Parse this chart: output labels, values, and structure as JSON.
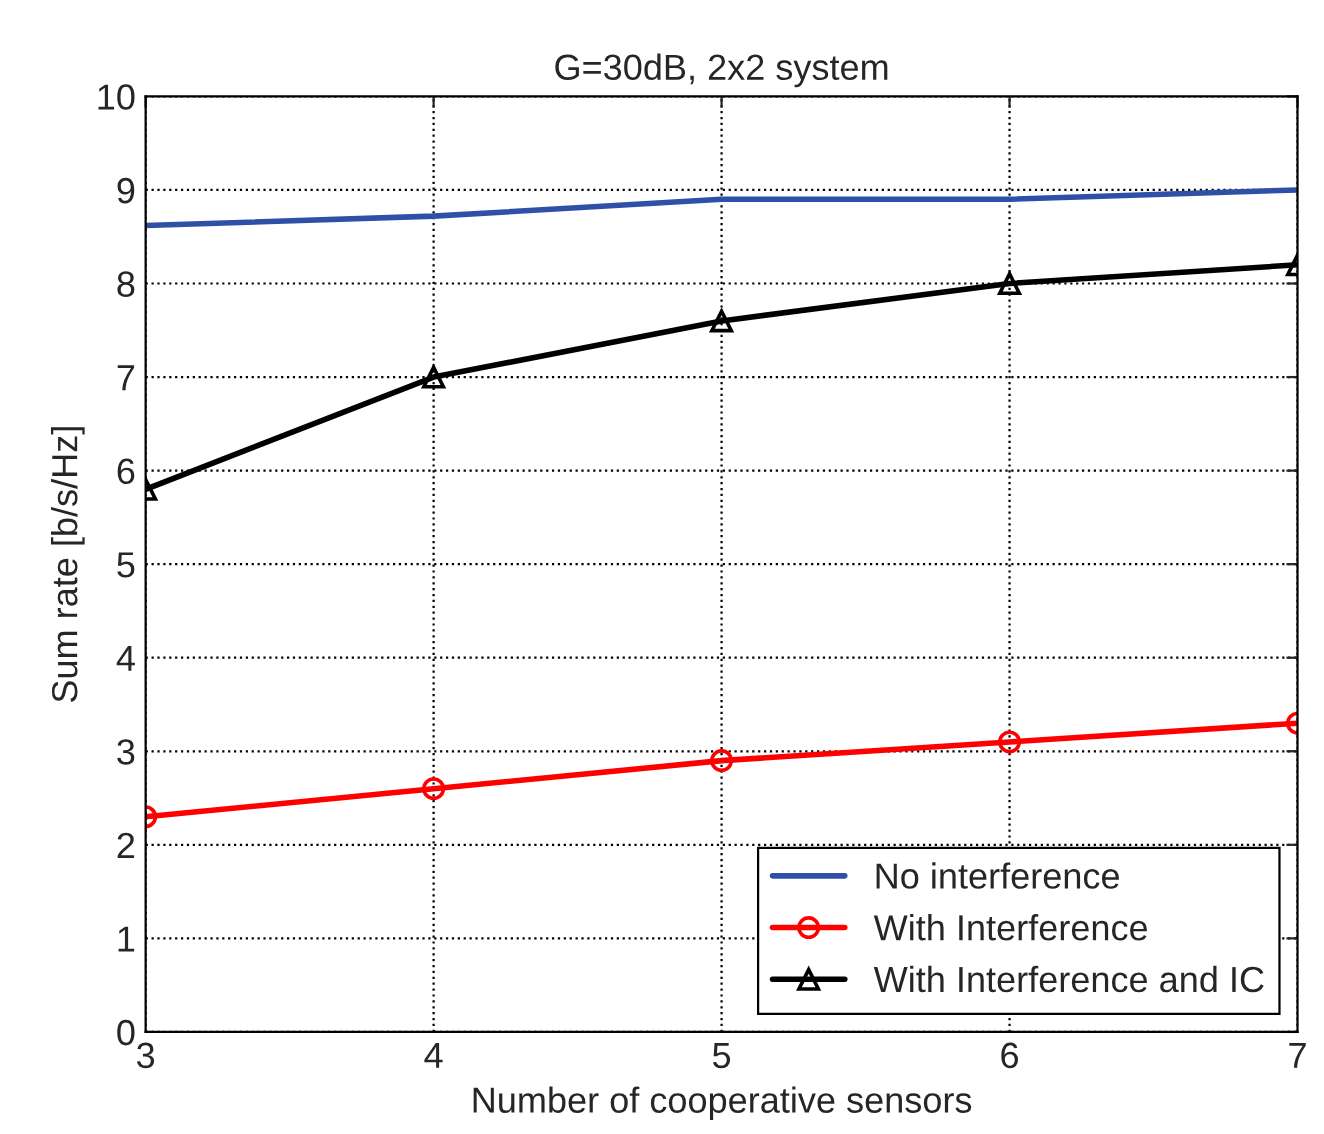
{
  "chart_data": {
    "type": "line",
    "title": "G=30dB, 2x2 system",
    "xlabel": "Number of cooperative sensors",
    "ylabel": "Sum rate [b/s/Hz]",
    "x": [
      3,
      4,
      5,
      6,
      7
    ],
    "series": [
      {
        "name": "No interference",
        "color": "#3050a8",
        "values": [
          8.62,
          8.72,
          8.9,
          8.9,
          9.0
        ],
        "marker": "none"
      },
      {
        "name": "With Interference",
        "color": "#ff0000",
        "values": [
          2.3,
          2.6,
          2.9,
          3.1,
          3.3
        ],
        "marker": "circle"
      },
      {
        "name": "With Interference and IC",
        "color": "#000000",
        "values": [
          5.8,
          7.0,
          7.6,
          8.0,
          8.2
        ],
        "marker": "triangle"
      }
    ],
    "xlim": [
      3,
      7
    ],
    "xticks": [
      3,
      4,
      5,
      6,
      7
    ],
    "ylim": [
      0,
      10
    ],
    "yticks": [
      0,
      1,
      2,
      3,
      4,
      5,
      6,
      7,
      8,
      9,
      10
    ],
    "grid": true,
    "legend": "bottom right",
    "line_style": "solid"
  }
}
